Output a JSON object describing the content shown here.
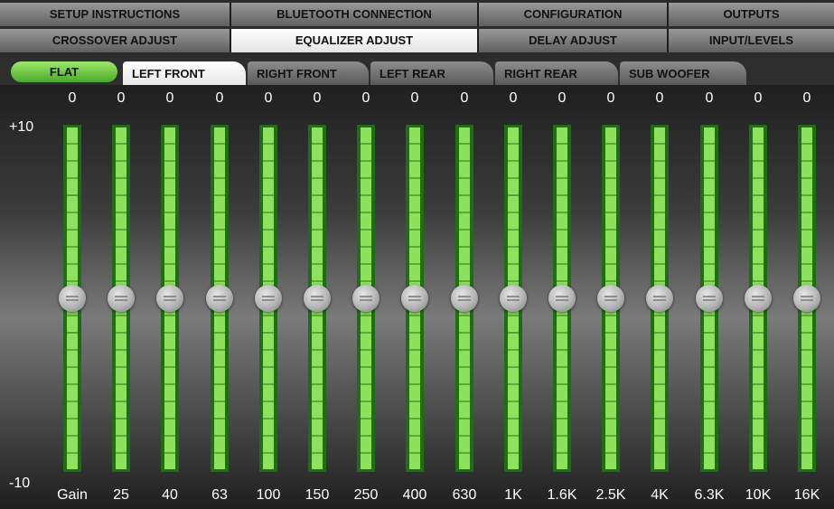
{
  "nav": {
    "row1": [
      {
        "label": "SETUP INSTRUCTIONS",
        "width": 256
      },
      {
        "label": "BLUETOOTH CONNECTION",
        "width": 274
      },
      {
        "label": "CONFIGURATION",
        "width": 210
      },
      {
        "label": "OUTPUTS",
        "width": 183
      }
    ],
    "row2": [
      {
        "label": "CROSSOVER ADJUST",
        "width": 256,
        "active": false
      },
      {
        "label": "EQUALIZER ADJUST",
        "width": 274,
        "active": true
      },
      {
        "label": "DELAY ADJUST",
        "width": 210,
        "active": false
      },
      {
        "label": "INPUT/LEVELS",
        "width": 183,
        "active": false
      }
    ]
  },
  "flat_label": "FLAT",
  "channel_tabs": [
    {
      "label": "LEFT FRONT",
      "active": true
    },
    {
      "label": "RIGHT FRONT",
      "active": false
    },
    {
      "label": "LEFT REAR",
      "active": false
    },
    {
      "label": "RIGHT REAR",
      "active": false
    },
    {
      "label": "SUB WOOFER",
      "active": false
    }
  ],
  "scale": {
    "max_label": "+10",
    "min_label": "-10",
    "max": 10,
    "min": -10
  },
  "bands": [
    {
      "freq": "Gain",
      "value": 0
    },
    {
      "freq": "25",
      "value": 0
    },
    {
      "freq": "40",
      "value": 0
    },
    {
      "freq": "63",
      "value": 0
    },
    {
      "freq": "100",
      "value": 0
    },
    {
      "freq": "150",
      "value": 0
    },
    {
      "freq": "250",
      "value": 0
    },
    {
      "freq": "400",
      "value": 0
    },
    {
      "freq": "630",
      "value": 0
    },
    {
      "freq": "1K",
      "value": 0
    },
    {
      "freq": "1.6K",
      "value": 0
    },
    {
      "freq": "2.5K",
      "value": 0
    },
    {
      "freq": "4K",
      "value": 0
    },
    {
      "freq": "6.3K",
      "value": 0
    },
    {
      "freq": "10K",
      "value": 0
    },
    {
      "freq": "16K",
      "value": 0
    }
  ]
}
